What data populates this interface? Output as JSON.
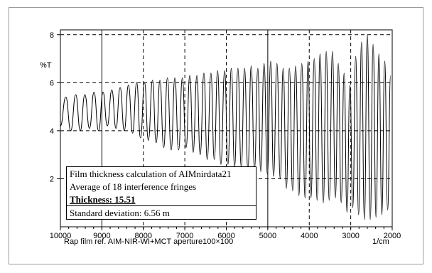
{
  "chart_data": {
    "type": "line",
    "xlabel": "1/cm",
    "ylabel": "%T",
    "xlim": [
      10000,
      2000
    ],
    "ylim": [
      0,
      8.2
    ],
    "x_ticks": [
      "10000",
      "9000",
      "8000",
      "7000",
      "6000",
      "5000",
      "4000",
      "3000",
      "2000"
    ],
    "y_ticks": [
      "2",
      "4",
      "6",
      "8"
    ],
    "x_tick_values": [
      10000,
      9000,
      8000,
      7000,
      6000,
      5000,
      4000,
      3000,
      2000
    ],
    "y_tick_values": [
      2,
      4,
      6,
      8
    ],
    "grid": "dashed",
    "caption": "Rap film  ref.  AIM-NIR-WI+MCT  aperture100×100",
    "series": [
      {
        "x": [
          10000,
          9870,
          9750,
          9630,
          9520,
          9410,
          9300,
          9190,
          9080,
          8970,
          8870,
          8760,
          8660,
          8560,
          8460,
          8360,
          8260,
          8160,
          8070,
          7970,
          7880,
          7780,
          7690,
          7600,
          7510,
          7420,
          7330,
          7240,
          7150,
          7060,
          6970,
          6880,
          6800,
          6710,
          6630,
          6540,
          6460,
          6370,
          6290,
          6210,
          6130,
          6040,
          5960,
          5880,
          5800,
          5720,
          5640,
          5560,
          5480,
          5400,
          5320,
          5240,
          5170,
          5090,
          5010,
          4930,
          4860,
          4780,
          4700,
          4630,
          4550,
          4480,
          4400,
          4330,
          4250,
          4180,
          4100,
          4030,
          3960,
          3880,
          3810,
          3740,
          3660,
          3590,
          3520,
          3440,
          3370,
          3300,
          3230,
          3160,
          3090,
          3020,
          2950,
          2880,
          2810,
          2740,
          2670,
          2600,
          2530,
          2460,
          2390,
          2320,
          2250,
          2180,
          2110,
          2040
        ],
        "y": [
          4.2,
          5.4,
          4.0,
          5.5,
          4.0,
          5.5,
          4.1,
          5.6,
          4.0,
          5.6,
          4.2,
          5.7,
          4.1,
          5.8,
          4.0,
          5.9,
          3.9,
          6.0,
          3.7,
          6.0,
          3.6,
          6.1,
          3.5,
          6.1,
          3.3,
          6.2,
          3.2,
          6.2,
          3.2,
          6.2,
          3.3,
          6.3,
          3.1,
          6.3,
          3.0,
          6.4,
          2.8,
          6.4,
          2.8,
          6.5,
          2.6,
          6.5,
          2.6,
          6.6,
          2.5,
          6.6,
          2.5,
          6.6,
          2.4,
          6.7,
          2.4,
          6.6,
          2.3,
          6.8,
          2.2,
          6.9,
          2.1,
          6.8,
          2.0,
          6.6,
          1.6,
          6.6,
          1.5,
          6.7,
          1.3,
          6.8,
          1.2,
          6.9,
          1.2,
          7.0,
          1.1,
          7.2,
          1.0,
          7.3,
          1.1,
          7.3,
          1.2,
          6.8,
          1.0,
          6.4,
          0.6,
          5.9,
          0.8,
          7.1,
          0.5,
          7.7,
          0.3,
          8.0,
          0.3,
          7.6,
          0.4,
          7.2,
          0.5,
          6.9,
          0.7,
          6.3
        ]
      }
    ]
  },
  "info_box": {
    "line1": "Film thickness calculation of AIMnirdata21",
    "line2": "Average of 18 interference fringes",
    "line3": "Thickness:  15.51",
    "line4": "Standard deviation: 6.56  m"
  }
}
